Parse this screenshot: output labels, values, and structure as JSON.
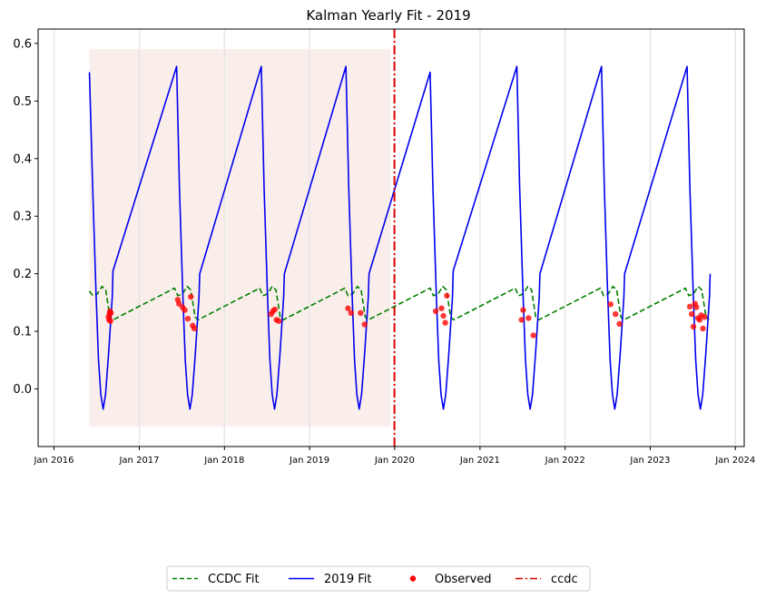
{
  "chart_data": {
    "type": "line",
    "title": "Kalman Yearly Fit - 2019",
    "xlabel": "",
    "ylabel": "",
    "xlim": [
      "2015-10-25",
      "2024-02-08"
    ],
    "ylim": [
      -0.1,
      0.625
    ],
    "x_ticks": [
      "Jan 2016",
      "Jan 2017",
      "Jan 2018",
      "Jan 2019",
      "Jan 2020",
      "Jan 2021",
      "Jan 2022",
      "Jan 2023",
      "Jan 2024"
    ],
    "y_ticks": [
      "0.0",
      "0.1",
      "0.2",
      "0.3",
      "0.4",
      "0.5",
      "0.6"
    ],
    "grid": "vertical",
    "shaded_region": {
      "x": [
        "2016-06-01",
        "2019-12-15"
      ],
      "y": [
        -0.065,
        0.59
      ],
      "color": "#f7e5e0"
    },
    "ccdc_line": {
      "name": "ccdc",
      "x": "2019-12-31",
      "color": "#dd0000"
    },
    "series": [
      {
        "name": "CCDC Fit",
        "style": "dashed",
        "color": "#008000",
        "points": [
          [
            "2016-06-01",
            0.17
          ],
          [
            "2016-06-15",
            0.162
          ],
          [
            "2016-07-05",
            0.165
          ],
          [
            "2016-07-25",
            0.178
          ],
          [
            "2016-08-10",
            0.172
          ],
          [
            "2016-08-28",
            0.125
          ],
          [
            "2016-09-10",
            0.12
          ],
          [
            "2017-06-01",
            0.175
          ],
          [
            "2017-06-15",
            0.162
          ],
          [
            "2017-07-05",
            0.165
          ],
          [
            "2017-07-25",
            0.178
          ],
          [
            "2017-08-10",
            0.172
          ],
          [
            "2017-08-28",
            0.125
          ],
          [
            "2017-09-10",
            0.12
          ],
          [
            "2018-06-01",
            0.175
          ],
          [
            "2018-06-15",
            0.162
          ],
          [
            "2018-07-05",
            0.165
          ],
          [
            "2018-07-25",
            0.178
          ],
          [
            "2018-08-10",
            0.172
          ],
          [
            "2018-08-28",
            0.125
          ],
          [
            "2018-09-10",
            0.12
          ],
          [
            "2019-06-01",
            0.175
          ],
          [
            "2019-06-15",
            0.162
          ],
          [
            "2019-07-05",
            0.165
          ],
          [
            "2019-07-25",
            0.178
          ],
          [
            "2019-08-10",
            0.172
          ],
          [
            "2019-08-28",
            0.125
          ],
          [
            "2019-09-10",
            0.12
          ],
          [
            "2020-06-01",
            0.175
          ],
          [
            "2020-06-15",
            0.162
          ],
          [
            "2020-07-05",
            0.165
          ],
          [
            "2020-07-25",
            0.178
          ],
          [
            "2020-08-10",
            0.172
          ],
          [
            "2020-08-28",
            0.125
          ],
          [
            "2020-09-10",
            0.12
          ],
          [
            "2021-06-01",
            0.175
          ],
          [
            "2021-06-15",
            0.162
          ],
          [
            "2021-07-05",
            0.165
          ],
          [
            "2021-07-25",
            0.178
          ],
          [
            "2021-08-10",
            0.172
          ],
          [
            "2021-08-28",
            0.125
          ],
          [
            "2021-09-10",
            0.12
          ],
          [
            "2022-06-01",
            0.175
          ],
          [
            "2022-06-15",
            0.162
          ],
          [
            "2022-07-05",
            0.165
          ],
          [
            "2022-07-25",
            0.178
          ],
          [
            "2022-08-10",
            0.172
          ],
          [
            "2022-08-28",
            0.125
          ],
          [
            "2022-09-10",
            0.12
          ],
          [
            "2023-06-01",
            0.175
          ],
          [
            "2023-06-15",
            0.162
          ],
          [
            "2023-07-05",
            0.165
          ],
          [
            "2023-07-25",
            0.178
          ],
          [
            "2023-08-10",
            0.172
          ],
          [
            "2023-08-28",
            0.125
          ],
          [
            "2023-09-10",
            0.12
          ]
        ]
      },
      {
        "name": "2019 Fit",
        "style": "solid",
        "color": "#0000ee",
        "points": [
          [
            "2016-06-01",
            0.55
          ],
          [
            "2016-06-15",
            0.35
          ],
          [
            "2016-06-29",
            0.17
          ],
          [
            "2016-07-10",
            0.05
          ],
          [
            "2016-07-20",
            -0.01
          ],
          [
            "2016-07-30",
            -0.035
          ],
          [
            "2016-08-09",
            -0.01
          ],
          [
            "2016-08-22",
            0.06
          ],
          [
            "2016-09-07",
            0.16
          ],
          [
            "2016-09-10",
            0.205
          ],
          [
            "2017-06-10",
            0.56
          ],
          [
            "2017-06-22",
            0.35
          ],
          [
            "2017-07-06",
            0.17
          ],
          [
            "2017-07-17",
            0.05
          ],
          [
            "2017-07-27",
            -0.01
          ],
          [
            "2017-08-06",
            -0.035
          ],
          [
            "2017-08-16",
            -0.01
          ],
          [
            "2017-08-29",
            0.06
          ],
          [
            "2017-09-14",
            0.16
          ],
          [
            "2017-09-17",
            0.2
          ],
          [
            "2018-06-08",
            0.56
          ],
          [
            "2018-06-20",
            0.35
          ],
          [
            "2018-07-04",
            0.17
          ],
          [
            "2018-07-15",
            0.05
          ],
          [
            "2018-07-25",
            -0.01
          ],
          [
            "2018-08-04",
            -0.035
          ],
          [
            "2018-08-14",
            -0.01
          ],
          [
            "2018-08-27",
            0.06
          ],
          [
            "2018-09-12",
            0.16
          ],
          [
            "2018-09-15",
            0.2
          ],
          [
            "2019-06-06",
            0.56
          ],
          [
            "2019-06-18",
            0.35
          ],
          [
            "2019-07-02",
            0.17
          ],
          [
            "2019-07-13",
            0.05
          ],
          [
            "2019-07-23",
            -0.01
          ],
          [
            "2019-08-02",
            -0.035
          ],
          [
            "2019-08-12",
            -0.01
          ],
          [
            "2019-08-25",
            0.06
          ],
          [
            "2019-09-10",
            0.16
          ],
          [
            "2019-09-13",
            0.2
          ],
          [
            "2020-06-01",
            0.55
          ],
          [
            "2020-06-13",
            0.35
          ],
          [
            "2020-06-27",
            0.17
          ],
          [
            "2020-07-08",
            0.05
          ],
          [
            "2020-07-18",
            -0.01
          ],
          [
            "2020-07-28",
            -0.035
          ],
          [
            "2020-08-07",
            -0.01
          ],
          [
            "2020-08-20",
            0.06
          ],
          [
            "2020-09-05",
            0.16
          ],
          [
            "2020-09-08",
            0.205
          ],
          [
            "2021-06-08",
            0.56
          ],
          [
            "2021-06-20",
            0.35
          ],
          [
            "2021-07-04",
            0.17
          ],
          [
            "2021-07-15",
            0.05
          ],
          [
            "2021-07-25",
            -0.01
          ],
          [
            "2021-08-04",
            -0.035
          ],
          [
            "2021-08-14",
            -0.01
          ],
          [
            "2021-08-27",
            0.06
          ],
          [
            "2021-09-12",
            0.16
          ],
          [
            "2021-09-15",
            0.2
          ],
          [
            "2022-06-06",
            0.56
          ],
          [
            "2022-06-18",
            0.35
          ],
          [
            "2022-07-02",
            0.17
          ],
          [
            "2022-07-13",
            0.05
          ],
          [
            "2022-07-23",
            -0.01
          ],
          [
            "2022-08-02",
            -0.035
          ],
          [
            "2022-08-12",
            -0.01
          ],
          [
            "2022-08-25",
            0.06
          ],
          [
            "2022-09-10",
            0.16
          ],
          [
            "2022-09-13",
            0.2
          ],
          [
            "2023-06-08",
            0.56
          ],
          [
            "2023-06-20",
            0.35
          ],
          [
            "2023-07-04",
            0.17
          ],
          [
            "2023-07-15",
            0.05
          ],
          [
            "2023-07-25",
            -0.01
          ],
          [
            "2023-08-04",
            -0.035
          ],
          [
            "2023-08-14",
            -0.01
          ],
          [
            "2023-08-27",
            0.06
          ],
          [
            "2023-09-12",
            0.16
          ],
          [
            "2023-09-15",
            0.2
          ]
        ]
      },
      {
        "name": "Observed",
        "style": "points",
        "color": "#ff0000",
        "points": [
          [
            "2016-08-22",
            0.125
          ],
          [
            "2016-08-24",
            0.12
          ],
          [
            "2016-08-26",
            0.13
          ],
          [
            "2016-08-28",
            0.135
          ],
          [
            "2016-08-30",
            0.118
          ],
          [
            "2016-09-01",
            0.132
          ],
          [
            "2017-06-15",
            0.155
          ],
          [
            "2017-06-20",
            0.148
          ],
          [
            "2017-07-05",
            0.142
          ],
          [
            "2017-07-15",
            0.137
          ],
          [
            "2017-07-28",
            0.122
          ],
          [
            "2017-08-10",
            0.16
          ],
          [
            "2017-08-18",
            0.11
          ],
          [
            "2017-08-25",
            0.105
          ],
          [
            "2018-07-20",
            0.13
          ],
          [
            "2018-07-28",
            0.135
          ],
          [
            "2018-08-05",
            0.138
          ],
          [
            "2018-08-12",
            0.12
          ],
          [
            "2018-08-22",
            0.118
          ],
          [
            "2019-06-15",
            0.14
          ],
          [
            "2019-06-28",
            0.132
          ],
          [
            "2019-08-08",
            0.132
          ],
          [
            "2019-08-25",
            0.112
          ],
          [
            "2020-06-25",
            0.135
          ],
          [
            "2020-07-20",
            0.14
          ],
          [
            "2020-07-28",
            0.127
          ],
          [
            "2020-08-05",
            0.115
          ],
          [
            "2020-08-12",
            0.162
          ],
          [
            "2021-06-28",
            0.12
          ],
          [
            "2021-07-05",
            0.137
          ],
          [
            "2021-07-28",
            0.123
          ],
          [
            "2021-08-18",
            0.093
          ],
          [
            "2022-07-15",
            0.147
          ],
          [
            "2022-08-05",
            0.13
          ],
          [
            "2022-08-22",
            0.113
          ],
          [
            "2023-06-20",
            0.143
          ],
          [
            "2023-06-28",
            0.13
          ],
          [
            "2023-07-05",
            0.108
          ],
          [
            "2023-07-12",
            0.148
          ],
          [
            "2023-07-18",
            0.142
          ],
          [
            "2023-07-25",
            0.123
          ],
          [
            "2023-08-01",
            0.12
          ],
          [
            "2023-08-08",
            0.128
          ],
          [
            "2023-08-15",
            0.105
          ],
          [
            "2023-08-22",
            0.125
          ]
        ]
      }
    ],
    "legend": {
      "placement": "bottom-center",
      "entries": [
        {
          "label": "CCDC Fit",
          "kind": "dashed",
          "color": "#008000"
        },
        {
          "label": "2019 Fit",
          "kind": "solid",
          "color": "#0000ee"
        },
        {
          "label": "Observed",
          "kind": "marker",
          "color": "#ff0000"
        },
        {
          "label": "ccdc",
          "kind": "dashdot",
          "color": "#dd0000"
        }
      ]
    }
  }
}
